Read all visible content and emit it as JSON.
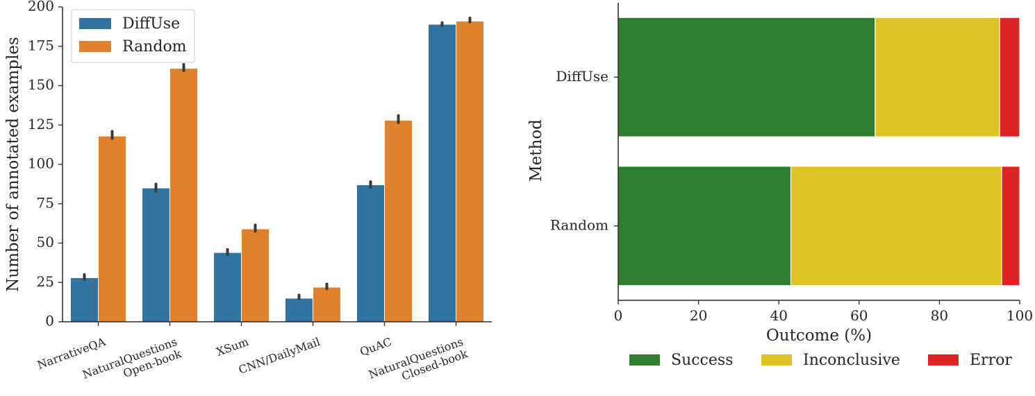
{
  "chart_data": [
    {
      "type": "bar",
      "ylabel": "Number of annotated examples",
      "xlabel": "",
      "ylim": [
        0,
        200
      ],
      "yticks": [
        "0",
        "25",
        "50",
        "75",
        "100",
        "125",
        "150",
        "175",
        "200"
      ],
      "categories": [
        [
          "NarrativeQA"
        ],
        [
          "NaturalQuestions",
          "Open-book"
        ],
        [
          "XSum"
        ],
        [
          "CNN/DailyMail"
        ],
        [
          "QuAC"
        ],
        [
          "NaturalQuestions",
          "Closed-book"
        ]
      ],
      "series": [
        {
          "name": "DiffUse",
          "color": "#3274a1",
          "values": [
            28,
            85,
            44,
            15,
            87,
            189
          ],
          "err_low": [
            27,
            83,
            42.5,
            14.5,
            85.5,
            188
          ],
          "err_high": [
            30,
            87.5,
            46,
            17,
            89,
            190
          ]
        },
        {
          "name": "Random",
          "color": "#e1812c",
          "values": [
            118,
            161,
            59,
            22,
            128,
            191
          ],
          "err_low": [
            116.5,
            159.5,
            57.5,
            21,
            126.5,
            190.5
          ],
          "err_high": [
            121,
            163.5,
            61.5,
            24,
            131,
            193
          ]
        }
      ],
      "legend": {
        "position": "top-left",
        "entries": [
          "DiffUse",
          "Random"
        ]
      }
    },
    {
      "type": "bar",
      "orientation": "horizontal",
      "stacked": true,
      "xlabel": "Outcome (%)",
      "ylabel": "Method",
      "xlim": [
        0,
        100
      ],
      "xticks": [
        "0",
        "20",
        "40",
        "60",
        "80",
        "100"
      ],
      "categories": [
        "DiffUse",
        "Random"
      ],
      "series": [
        {
          "name": "Success",
          "color": "#2e7f30",
          "values": [
            64,
            43
          ]
        },
        {
          "name": "Inconclusive",
          "color": "#dfc223",
          "values": [
            31,
            52.5
          ]
        },
        {
          "name": "Error",
          "color": "#dd2323",
          "values": [
            5,
            4.5
          ]
        }
      ],
      "legend": {
        "position": "bottom",
        "entries": [
          "Success",
          "Inconclusive",
          "Error"
        ]
      }
    }
  ]
}
